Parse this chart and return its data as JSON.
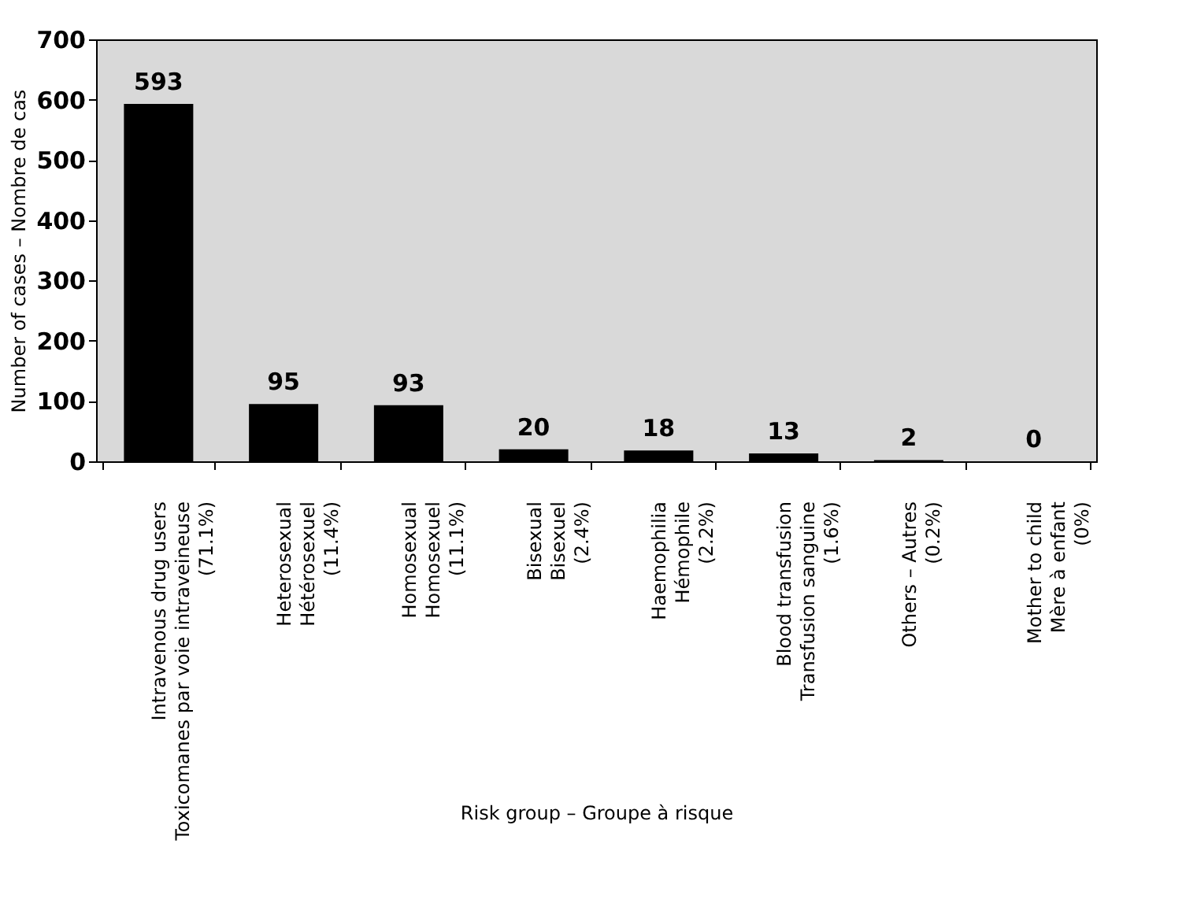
{
  "chart_data": {
    "type": "bar",
    "xlabel": "Risk group – Groupe à risque",
    "ylabel": "Number of cases – Nombre de cas",
    "categories": [
      "Intravenous drug users\nToxicomanes par voie intraveineuse\n(71.1%)",
      "Heterosexual\nHétérosexuel\n(11.4%)",
      "Homosexual\nHomosexuel\n(11.1%)",
      "Bisexual\nBisexuel\n(2.4%)",
      "Haemophilia\nHémophile\n(2.2%)",
      "Blood transfusion\nTransfusion sanguine\n(1.6%)",
      "Others – Autres\n(0.2%)",
      "Mother to child\nMère à enfant\n(0%)"
    ],
    "values": [
      593,
      95,
      93,
      20,
      18,
      13,
      2,
      0
    ],
    "color": "#000000",
    "ylim": [
      0,
      700
    ],
    "yticks": [
      0,
      100,
      200,
      300,
      400,
      500,
      600,
      700
    ],
    "grid": false,
    "data_labels": true
  }
}
